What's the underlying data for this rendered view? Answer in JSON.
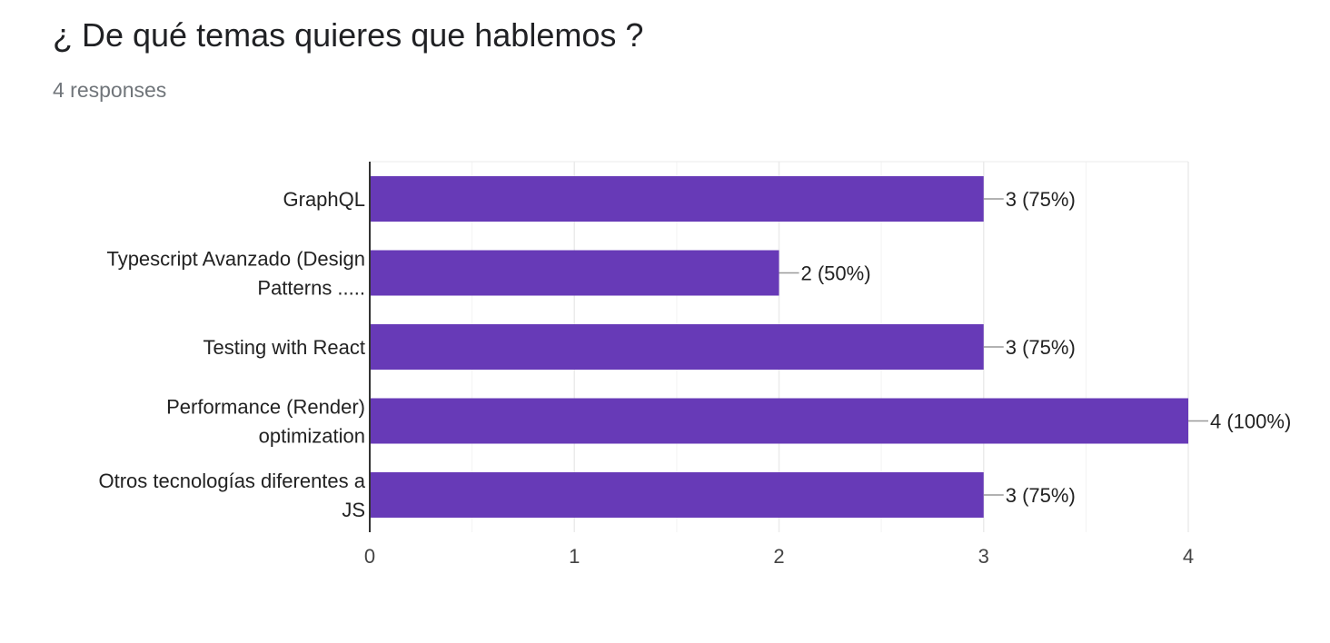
{
  "header": {
    "title": "¿ De qué temas quieres que hablemos ?",
    "responses": "4 responses"
  },
  "colors": {
    "bar": "#673ab7",
    "grid": "#ebebeb",
    "axis": "#333333",
    "label": "#222222",
    "tick": "#444444"
  },
  "chart_data": {
    "type": "bar",
    "orientation": "horizontal",
    "categories": [
      [
        "GraphQL"
      ],
      [
        "Typescript Avanzado (Design",
        "Patterns ....."
      ],
      [
        "Testing with React"
      ],
      [
        "Performance (Render)",
        "optimization"
      ],
      [
        "Otros tecnologías diferentes a",
        "JS"
      ]
    ],
    "values": [
      3,
      2,
      3,
      4,
      3
    ],
    "data_labels": [
      "3 (75%)",
      "2 (50%)",
      "3 (75%)",
      "4 (100%)",
      "3 (75%)"
    ],
    "xlim": [
      0,
      4
    ],
    "x_ticks": [
      0,
      1,
      2,
      3,
      4
    ],
    "grid": true,
    "legend": "none"
  }
}
